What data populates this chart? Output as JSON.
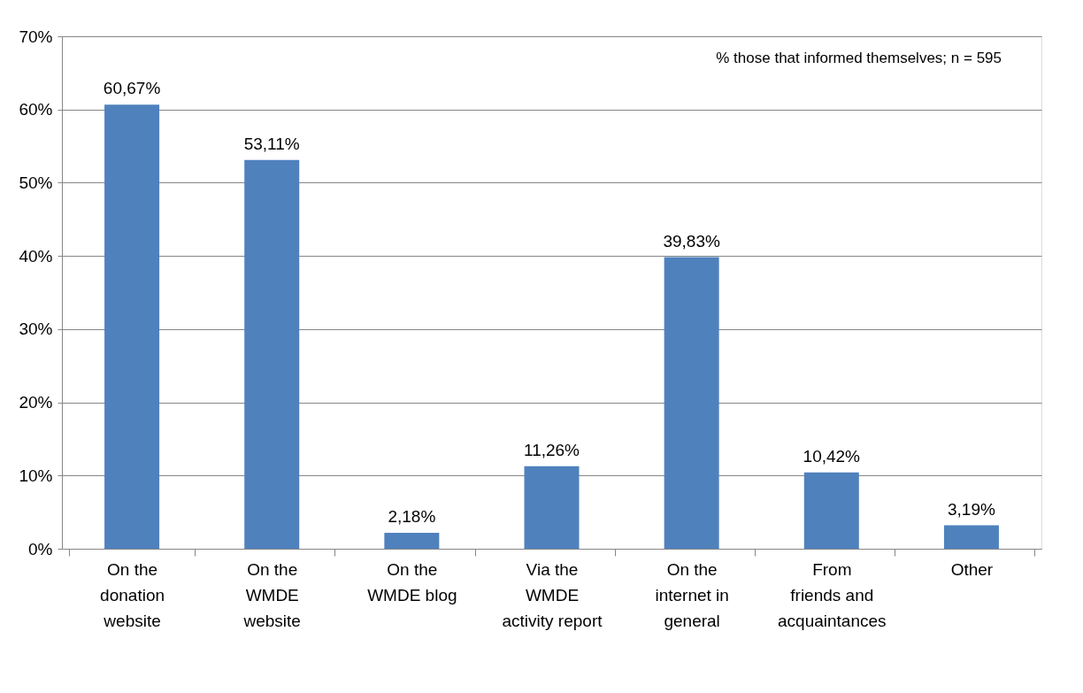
{
  "chart_data": {
    "type": "bar",
    "categories": [
      "On the\ndonation\nwebsite",
      "On the\nWMDE\nwebsite",
      "On the\nWMDE blog",
      "Via the\nWMDE\nactivity report",
      "On the\ninternet in\ngeneral",
      "From\nfriends and\nacquaintances",
      "Other"
    ],
    "values": [
      60.67,
      53.11,
      2.18,
      11.26,
      39.83,
      10.42,
      3.19
    ],
    "value_labels": [
      "60,67%",
      "53,11%",
      "2,18%",
      "11,26%",
      "39,83%",
      "10,42%",
      "3,19%"
    ],
    "color": "#4f81bd",
    "ylim": [
      0,
      70
    ],
    "yticks": [
      {
        "value": 0,
        "label": "0%"
      },
      {
        "value": 10,
        "label": "10%"
      },
      {
        "value": 20,
        "label": "20%"
      },
      {
        "value": 30,
        "label": "30%"
      },
      {
        "value": 40,
        "label": "40%"
      },
      {
        "value": 50,
        "label": "50%"
      },
      {
        "value": 60,
        "label": "60%"
      },
      {
        "value": 70,
        "label": "70%"
      }
    ],
    "grid": "y",
    "annotations": [
      "% those that informed themselves; n = 595"
    ]
  }
}
